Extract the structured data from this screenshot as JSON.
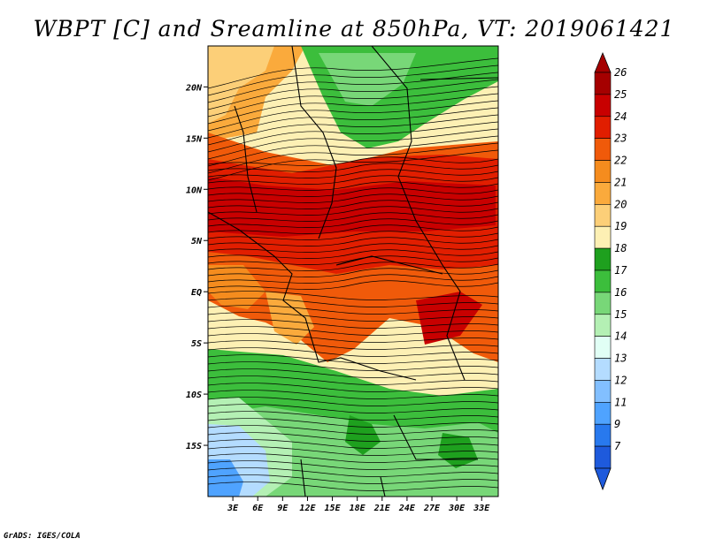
{
  "title": "WBPT [C] and Sreamline at 850hPa, VT: 2019061421",
  "footer": "GrADS: IGES/COLA",
  "map": {
    "lon_range": [
      0,
      35
    ],
    "lat_range": [
      -20,
      24
    ],
    "x_ticks": [
      3,
      6,
      9,
      12,
      15,
      18,
      21,
      24,
      27,
      30,
      33
    ],
    "x_tick_labels": [
      "3E",
      "6E",
      "9E",
      "12E",
      "15E",
      "18E",
      "21E",
      "24E",
      "27E",
      "30E",
      "33E"
    ],
    "y_ticks": [
      20,
      15,
      10,
      5,
      0,
      -5,
      -10,
      -15
    ],
    "y_tick_labels": [
      "20N",
      "15N",
      "10N",
      "5N",
      "EQ",
      "5S",
      "10S",
      "15S"
    ]
  },
  "colorbar": {
    "levels": [
      "26",
      "25",
      "24",
      "23",
      "22",
      "21",
      "20",
      "19",
      "18",
      "17",
      "16",
      "15",
      "14",
      "13",
      "12",
      "11",
      "9",
      "7"
    ],
    "colors": [
      "#a50000",
      "#c80000",
      "#e11e00",
      "#f05a0a",
      "#f58c1e",
      "#faaa3c",
      "#fccf78",
      "#fdf0b4",
      "#1ea01e",
      "#3cbe3c",
      "#78d778",
      "#b4f0b4",
      "#e1fff5",
      "#b4dcff",
      "#82bfff",
      "#4fa3ff",
      "#2879ee",
      "#1e5adc"
    ]
  },
  "field_colors": {
    "c26": "#c80000",
    "c24": "#e11e00",
    "c23": "#f05a0a",
    "c22": "#f58c1e",
    "c21": "#faaa3c",
    "c20": "#fccf78",
    "c19": "#fdf0b4",
    "c18": "#1ea01e",
    "c17": "#3cbe3c",
    "c16": "#78d778",
    "c15": "#b4f0b4",
    "c14": "#e1fff5",
    "c13": "#b4dcff",
    "c11": "#4fa3ff"
  }
}
